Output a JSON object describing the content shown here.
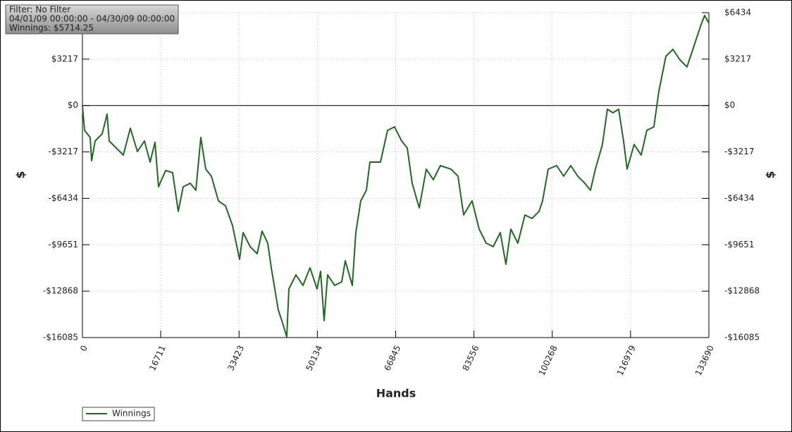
{
  "chart_data": {
    "type": "line",
    "info_lines": [
      "Filter: No Filter",
      "04/01/09 00:00:00 - 04/30/09 00:00:00",
      "Winnings: $5714.25"
    ],
    "x_label": "Hands",
    "y_label": "$",
    "y2_label": "$",
    "xlim": [
      0,
      133690
    ],
    "ylim": [
      -16085,
      6434
    ],
    "xticks": [
      0,
      16711,
      33423,
      50134,
      66845,
      83556,
      100268,
      116979,
      133690
    ],
    "yticks": [
      {
        "value": -16085,
        "label": "-$16085"
      },
      {
        "value": -12868,
        "label": "-$12868"
      },
      {
        "value": -9651,
        "label": "-$9651"
      },
      {
        "value": -6434,
        "label": "-$6434"
      },
      {
        "value": -3217,
        "label": "-$3217"
      },
      {
        "value": 0,
        "label": "$0"
      },
      {
        "value": 3217,
        "label": "$3217"
      },
      {
        "value": 6434,
        "label": "$6434"
      }
    ],
    "grid": true,
    "zero_line": true,
    "legend": "bottom-left",
    "series": [
      {
        "name": "Winnings",
        "color": "#1e6b1e",
        "x": [
          0,
          451,
          1654,
          1955,
          2707,
          4211,
          5263,
          5714,
          7218,
          8722,
          10226,
          11729,
          13233,
          14436,
          15489,
          16241,
          17744,
          19248,
          20451,
          21504,
          23008,
          24211,
          25263,
          26316,
          27519,
          29023,
          30526,
          32030,
          33534,
          34286,
          35790,
          37293,
          38346,
          39549,
          40301,
          41805,
          42557,
          43609,
          44060,
          45564,
          47068,
          48571,
          50075,
          50827,
          51579,
          52331,
          53835,
          55338,
          56090,
          57594,
          58346,
          59398,
          60601,
          61353,
          63609,
          65113,
          66617,
          68121,
          69324,
          70376,
          71880,
          73384,
          74887,
          76391,
          78647,
          80150,
          81353,
          83158,
          84662,
          86165,
          87669,
          89173,
          90376,
          91429,
          92932,
          94436,
          95940,
          97444,
          98196,
          99399,
          101203,
          102707,
          104211,
          105714,
          107218,
          108421,
          109474,
          110977,
          112030,
          113233,
          114436,
          115489,
          116241,
          117744,
          119248,
          120451,
          121955,
          123008,
          124511,
          126015,
          127519,
          129023,
          130526,
          132030,
          132782,
          133690
        ],
        "values": [
          0,
          -1724,
          -2212,
          -3825,
          -2457,
          -1968,
          -600,
          -2457,
          -2945,
          -3434,
          -1577,
          -3189,
          -2457,
          -3922,
          -2554,
          -5632,
          -4508,
          -4655,
          -7342,
          -5632,
          -5388,
          -5876,
          -2212,
          -4411,
          -4899,
          -6609,
          -6951,
          -8319,
          -10664,
          -8807,
          -9784,
          -10273,
          -8710,
          -9540,
          -11250,
          -14181,
          -14913,
          -16037,
          -12715,
          -11738,
          -12471,
          -11250,
          -12715,
          -11494,
          -14913,
          -11738,
          -12471,
          -12227,
          -10761,
          -12471,
          -8807,
          -6609,
          -5876,
          -3922,
          -3922,
          -1724,
          -1480,
          -2457,
          -2945,
          -5388,
          -7097,
          -4411,
          -5143,
          -4166,
          -4411,
          -4899,
          -7586,
          -6609,
          -8563,
          -9540,
          -9784,
          -8807,
          -11005,
          -8563,
          -9540,
          -7586,
          -7830,
          -7342,
          -6609,
          -4411,
          -4166,
          -4899,
          -4166,
          -4899,
          -5388,
          -5876,
          -4411,
          -2701,
          -258,
          -503,
          -258,
          -2457,
          -4411,
          -2701,
          -3434,
          -1724,
          -1480,
          963,
          3405,
          3894,
          3161,
          2673,
          4138,
          5604,
          6239,
          5714
        ]
      }
    ]
  }
}
